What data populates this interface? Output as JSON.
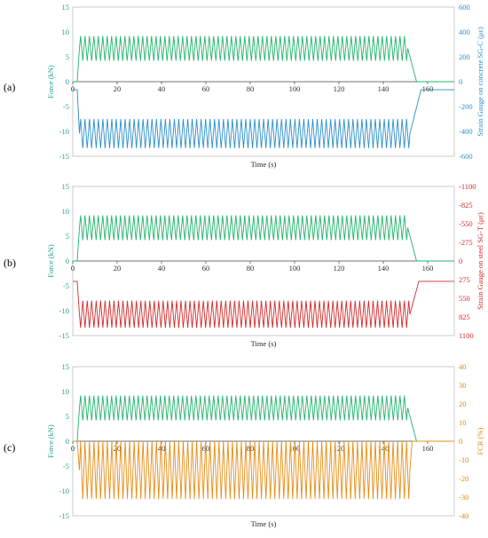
{
  "colors": {
    "force": "#21b36b",
    "force_axis": "#1f9e8a",
    "concrete_strain": "#2a8ec9",
    "steel_strain": "#d32b2b",
    "fcr": "#e88c14",
    "fcr_axis": "#d28a1a",
    "x0_line": "#555555"
  },
  "chart_data": [
    {
      "panel_label": "(a)",
      "type": "line",
      "xlabel": "Time (s)",
      "ylabel_left": "Force (kN)",
      "ylabel_right": "Strain Gauge on concrete SG-C (με)",
      "x_ticks": [
        0,
        20,
        40,
        60,
        80,
        100,
        120,
        140,
        160
      ],
      "y_left_ticks": [
        15,
        10,
        5,
        0,
        -5,
        -10,
        -15
      ],
      "y_right_ticks": [
        600,
        400,
        200,
        0,
        -200,
        -400,
        -600
      ],
      "xlim": [
        0,
        172
      ],
      "ylim_left": [
        -15,
        15
      ],
      "ylim_right": [
        -600,
        600
      ],
      "series": [
        {
          "name": "Force",
          "key": "force",
          "axis": "left",
          "loading_start": 3,
          "loading_end": 151,
          "cycles": 74,
          "baseline": 0,
          "min": 4.2,
          "max": 9.2,
          "unload_end": 155
        },
        {
          "name": "SG-C",
          "key": "concrete_strain",
          "axis": "right",
          "loading_start": 3,
          "loading_end": 152,
          "cycles": 74,
          "baseline": -65,
          "min": -535,
          "max": -300,
          "unload_end": 157
        }
      ]
    },
    {
      "panel_label": "(b)",
      "type": "line",
      "xlabel": "Time (s)",
      "ylabel_left": "Force (kN)",
      "ylabel_right": "Strain Gauge on steel SG-T (με)",
      "x_ticks": [
        0,
        20,
        40,
        60,
        80,
        100,
        120,
        140,
        160
      ],
      "y_left_ticks": [
        15,
        10,
        5,
        0,
        -5,
        -10,
        -15
      ],
      "y_right_ticks": [
        -1100,
        -825,
        -550,
        -275,
        0,
        275,
        550,
        825,
        1100
      ],
      "xlim": [
        0,
        172
      ],
      "ylim_left": [
        -15,
        15
      ],
      "ylim_right": [
        1100,
        -1100
      ],
      "series": [
        {
          "name": "Force",
          "key": "force",
          "axis": "left",
          "loading_start": 3,
          "loading_end": 151,
          "cycles": 74,
          "baseline": 0,
          "min": 4.2,
          "max": 9.2,
          "unload_end": 155
        },
        {
          "name": "SG-T",
          "key": "steel_strain",
          "axis": "right",
          "loading_start": 3,
          "loading_end": 152,
          "cycles": 74,
          "baseline": 300,
          "min": 585,
          "max": 985,
          "unload_end": 156
        }
      ]
    },
    {
      "panel_label": "(c)",
      "type": "line",
      "xlabel": "Time (s)",
      "ylabel_left": "Force (kN)",
      "ylabel_right": "FCR (%)",
      "x_ticks": [
        0,
        20,
        40,
        60,
        80,
        100,
        120,
        140,
        160
      ],
      "y_left_ticks": [
        15,
        10,
        5,
        0,
        -5,
        -10,
        -15
      ],
      "y_right_ticks": [
        40,
        30,
        20,
        10,
        0,
        -10,
        -20,
        -30,
        -40
      ],
      "xlim": [
        0,
        172
      ],
      "ylim_left": [
        -15,
        15
      ],
      "ylim_right": [
        -40,
        40
      ],
      "series": [
        {
          "name": "Force",
          "key": "force",
          "axis": "left",
          "loading_start": 3,
          "loading_end": 151,
          "cycles": 74,
          "baseline": 0,
          "min": 4.2,
          "max": 9.2,
          "unload_end": 155
        },
        {
          "name": "FCR",
          "key": "fcr",
          "axis": "right",
          "loading_start": 3,
          "loading_end": 152,
          "cycles": 74,
          "baseline": 0,
          "min": -31,
          "max": 0,
          "unload_end": 153
        }
      ]
    }
  ]
}
